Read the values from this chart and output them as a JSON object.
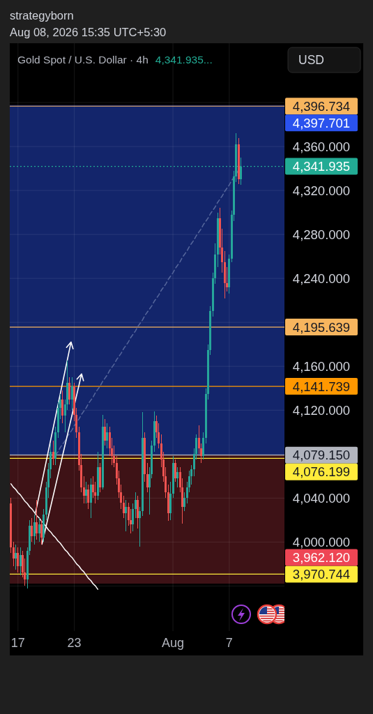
{
  "chart_data": {
    "type": "candlestick",
    "title": "Gold Spot / U.S. Dollar · 4h",
    "subtitle": "Aug 08, 2026 15:35 UTC+5:30",
    "annotations": [
      "strategyborn",
      "4,341.935...",
      "USD"
    ],
    "categories": [
      null,
      null,
      null,
      "17",
      null,
      null,
      null,
      null,
      null,
      null,
      null,
      null,
      null,
      null,
      null,
      null,
      null,
      null,
      null,
      null,
      null,
      null,
      null,
      null,
      null,
      null,
      null,
      "23",
      null,
      null,
      null,
      null,
      null,
      null,
      null,
      null,
      null,
      null,
      null,
      null,
      null,
      null,
      null,
      null,
      null,
      null,
      null,
      null,
      null,
      null,
      null,
      null,
      null,
      null,
      null,
      null,
      null,
      null,
      null,
      null,
      null,
      null,
      null,
      null,
      null,
      null,
      null,
      null,
      null,
      "Aug",
      null,
      null,
      null,
      null,
      null,
      null,
      null,
      null,
      null,
      null,
      null,
      null,
      null,
      null,
      null,
      null,
      null,
      null,
      null,
      null,
      null,
      null,
      null,
      "7",
      null,
      null,
      null,
      null,
      null
    ],
    "ylim": [
      3919,
      4454
    ],
    "yticks": [
      {
        "value": 3960,
        "label": null
      },
      {
        "value": 4000,
        "label": "4,000.000"
      },
      {
        "value": 4040,
        "label": "4,040.000"
      },
      {
        "value": 4080,
        "label": null
      },
      {
        "value": 4120,
        "label": "4,120.000"
      },
      {
        "value": 4160,
        "label": "4,160.000"
      },
      {
        "value": 4200,
        "label": null
      },
      {
        "value": 4240,
        "label": "4,240.000"
      },
      {
        "value": 4280,
        "label": "4,280.000"
      },
      {
        "value": 4320,
        "label": "4,320.000"
      },
      {
        "value": 4360,
        "label": "4,360.000"
      },
      {
        "value": 4400,
        "label": null
      }
    ],
    "grid": true,
    "series": [
      {
        "ohlc": [
          [
            4035,
            4040,
            3990,
            3995
          ],
          [
            3995,
            4000,
            3978,
            3985
          ],
          [
            3985,
            3998,
            3975,
            3990
          ],
          [
            3990,
            3995,
            3972,
            3978
          ],
          [
            3978,
            3995,
            3970,
            3988
          ],
          [
            3988,
            3992,
            3968,
            3972
          ],
          [
            3972,
            3985,
            3960,
            3966
          ],
          [
            3966,
            3995,
            3958,
            3992
          ],
          [
            3992,
            4020,
            3988,
            4015
          ],
          [
            4015,
            4022,
            4000,
            4005
          ],
          [
            4005,
            4025,
            3998,
            4018
          ],
          [
            4018,
            4038,
            4002,
            4008
          ],
          [
            4008,
            4022,
            4000,
            4016
          ],
          [
            4016,
            4020,
            3998,
            4004
          ],
          [
            4004,
            4030,
            4000,
            4025
          ],
          [
            4025,
            4055,
            4020,
            4050
          ],
          [
            4050,
            4072,
            4040,
            4066
          ],
          [
            4066,
            4090,
            4058,
            4082
          ],
          [
            4082,
            4092,
            4070,
            4076
          ],
          [
            4076,
            4105,
            4070,
            4100
          ],
          [
            4100,
            4128,
            4095,
            4122
          ],
          [
            4122,
            4135,
            4112,
            4130
          ],
          [
            4130,
            4138,
            4108,
            4115
          ],
          [
            4115,
            4130,
            4100,
            4125
          ],
          [
            4125,
            4165,
            4120,
            4145
          ],
          [
            4145,
            4150,
            4125,
            4130
          ],
          [
            4130,
            4150,
            4120,
            4142
          ],
          [
            4142,
            4145,
            4110,
            4116
          ],
          [
            4116,
            4122,
            4095,
            4100
          ],
          [
            4100,
            4105,
            4065,
            4070
          ],
          [
            4070,
            4080,
            4045,
            4050
          ],
          [
            4050,
            4060,
            4035,
            4042
          ],
          [
            4042,
            4055,
            4035,
            4048
          ],
          [
            4048,
            4052,
            4030,
            4036
          ],
          [
            4036,
            4058,
            4022,
            4052
          ],
          [
            4052,
            4060,
            4040,
            4045
          ],
          [
            4045,
            4055,
            4035,
            4042
          ],
          [
            4042,
            4082,
            4038,
            4068
          ],
          [
            4068,
            4072,
            4045,
            4050
          ],
          [
            4050,
            4116,
            4048,
            4105
          ],
          [
            4105,
            4112,
            4088,
            4092
          ],
          [
            4092,
            4108,
            4085,
            4100
          ],
          [
            4100,
            4105,
            4078,
            4085
          ],
          [
            4085,
            4095,
            4070,
            4078
          ],
          [
            4078,
            4088,
            4068,
            4072
          ],
          [
            4072,
            4078,
            4052,
            4058
          ],
          [
            4058,
            4065,
            4040,
            4045
          ],
          [
            4045,
            4052,
            4030,
            4036
          ],
          [
            4036,
            4042,
            4022,
            4026
          ],
          [
            4026,
            4038,
            4010,
            4032
          ],
          [
            4032,
            4036,
            4015,
            4020
          ],
          [
            4020,
            4030,
            4008,
            4016
          ],
          [
            4016,
            4035,
            4010,
            4030
          ],
          [
            4030,
            4045,
            4022,
            4038
          ],
          [
            4038,
            4042,
            4012,
            4022
          ],
          [
            4022,
            4032,
            3996,
            4028
          ],
          [
            4028,
            4118,
            4024,
            4095
          ],
          [
            4095,
            4100,
            4055,
            4062
          ],
          [
            4062,
            4072,
            4045,
            4050
          ],
          [
            4050,
            4068,
            4025,
            4062
          ],
          [
            4062,
            4092,
            4058,
            4088
          ],
          [
            4088,
            4119,
            4082,
            4110
          ],
          [
            4110,
            4115,
            4095,
            4100
          ],
          [
            4100,
            4108,
            4085,
            4090
          ],
          [
            4090,
            4098,
            4068,
            4075
          ],
          [
            4075,
            4082,
            4055,
            4060
          ],
          [
            4060,
            4068,
            4040,
            4045
          ],
          [
            4045,
            4052,
            4019,
            4026
          ],
          [
            4026,
            4055,
            4020,
            4044
          ],
          [
            4044,
            4078,
            4040,
            4072
          ],
          [
            4072,
            4075,
            4055,
            4058
          ],
          [
            4058,
            4068,
            4050,
            4064
          ],
          [
            4064,
            4068,
            4045,
            4050
          ],
          [
            4050,
            4058,
            4017,
            4032
          ],
          [
            4032,
            4045,
            4028,
            4040
          ],
          [
            4040,
            4055,
            4035,
            4050
          ],
          [
            4050,
            4065,
            4045,
            4060
          ],
          [
            4060,
            4070,
            4052,
            4066
          ],
          [
            4066,
            4085,
            4060,
            4080
          ],
          [
            4080,
            4098,
            4075,
            4095
          ],
          [
            4095,
            4106,
            4080,
            4085
          ],
          [
            4085,
            4090,
            4072,
            4078
          ],
          [
            4078,
            4100,
            4075,
            4095
          ],
          [
            4095,
            4140,
            4090,
            4135
          ],
          [
            4135,
            4180,
            4130,
            4175
          ],
          [
            4175,
            4215,
            4170,
            4210
          ],
          [
            4210,
            4245,
            4205,
            4240
          ],
          [
            4240,
            4272,
            4235,
            4262
          ],
          [
            4262,
            4300,
            4250,
            4295
          ],
          [
            4295,
            4304,
            4262,
            4268
          ],
          [
            4268,
            4285,
            4245,
            4255
          ],
          [
            4255,
            4265,
            4222,
            4236
          ],
          [
            4236,
            4250,
            4228,
            4232
          ],
          [
            4232,
            4262,
            4226,
            4258
          ],
          [
            4258,
            4302,
            4255,
            4298
          ],
          [
            4298,
            4338,
            4292,
            4333
          ],
          [
            4333,
            4372,
            4328,
            4362
          ],
          [
            4362,
            4368,
            4326,
            4330
          ],
          [
            4330,
            4350,
            4325,
            4341.935
          ]
        ],
        "colors": [
          "#ef5350",
          "#ef5350",
          "#26a69a",
          "#ef5350",
          "#26a69a",
          "#ef5350",
          "#ef5350",
          "#26a69a",
          "#26a69a",
          "#ef5350",
          "#26a69a",
          "#ef5350",
          "#26a69a",
          "#ef5350",
          "#26a69a",
          "#26a69a",
          "#26a69a",
          "#26a69a",
          "#ef5350",
          "#26a69a",
          "#26a69a",
          "#26a69a",
          "#ef5350",
          "#26a69a",
          "#26a69a",
          "#ef5350",
          "#26a69a",
          "#ef5350",
          "#ef5350",
          "#ef5350",
          "#ef5350",
          "#ef5350",
          "#26a69a",
          "#ef5350",
          "#26a69a",
          "#ef5350",
          "#ef5350",
          "#26a69a",
          "#ef5350",
          "#26a69a",
          "#ef5350",
          "#26a69a",
          "#ef5350",
          "#ef5350",
          "#ef5350",
          "#ef5350",
          "#ef5350",
          "#ef5350",
          "#ef5350",
          "#26a69a",
          "#ef5350",
          "#ef5350",
          "#26a69a",
          "#26a69a",
          "#ef5350",
          "#26a69a",
          "#26a69a",
          "#ef5350",
          "#ef5350",
          "#26a69a",
          "#26a69a",
          "#26a69a",
          "#ef5350",
          "#ef5350",
          "#ef5350",
          "#ef5350",
          "#ef5350",
          "#ef5350",
          "#26a69a",
          "#26a69a",
          "#ef5350",
          "#26a69a",
          "#ef5350",
          "#ef5350",
          "#26a69a",
          "#26a69a",
          "#26a69a",
          "#26a69a",
          "#26a69a",
          "#26a69a",
          "#ef5350",
          "#ef5350",
          "#26a69a",
          "#26a69a",
          "#26a69a",
          "#26a69a",
          "#26a69a",
          "#26a69a",
          "#26a69a",
          "#ef5350",
          "#ef5350",
          "#ef5350",
          "#ef5350",
          "#26a69a",
          "#26a69a",
          "#26a69a",
          "#26a69a",
          "#ef5350",
          "#26a69a"
        ]
      },
      {
        "type": "line",
        "color": "#ffffff",
        "values": [
          4053,
          4050,
          4048,
          4045,
          4043,
          4040,
          4037,
          4035,
          4032,
          4030,
          4027,
          4024,
          4022,
          4019,
          4017,
          4014,
          4011,
          4009,
          4006,
          4004,
          4001,
          3999,
          3996,
          3993,
          3991,
          3988,
          3986,
          3983,
          3980,
          3978,
          3975,
          3973,
          3970,
          3967,
          3965,
          3962,
          3960,
          3957,
          null,
          null,
          null,
          null,
          null,
          null,
          null,
          null,
          null,
          null,
          null,
          null,
          null,
          null,
          null,
          null,
          null,
          null,
          null,
          null,
          null,
          null,
          null,
          null,
          null,
          null,
          null,
          null,
          null,
          null,
          null,
          null,
          null,
          null,
          null,
          null,
          null,
          null,
          null,
          null,
          null,
          null,
          null,
          null,
          null,
          null,
          null,
          null,
          null,
          null,
          null,
          null,
          null,
          null,
          null,
          null,
          null,
          null,
          null,
          null,
          null
        ]
      },
      {
        "type": "line",
        "color": "#56679c",
        "line_style": "dashed",
        "values": [
          null,
          null,
          null,
          null,
          null,
          null,
          null,
          null,
          null,
          null,
          null,
          null,
          null,
          null,
          null,
          null,
          null,
          null,
          null,
          4079,
          4082,
          4086,
          4089,
          4092,
          4096,
          4099,
          4102,
          4106,
          4109,
          4112,
          4116,
          4119,
          4122,
          4126,
          4129,
          4132,
          4136,
          4139,
          4142,
          4146,
          4149,
          4152,
          4156,
          4159,
          4162,
          4166,
          4169,
          4172,
          4176,
          4179,
          4182,
          4186,
          4189,
          4192,
          4196,
          4199,
          4202,
          4206,
          4209,
          4212,
          4215,
          4219,
          4222,
          4225,
          4229,
          4232,
          4235,
          4239,
          4242,
          4245,
          4249,
          4252,
          4255,
          4259,
          4262,
          4265,
          4269,
          4272,
          4275,
          4279,
          4282,
          4285,
          4289,
          4292,
          4295,
          4299,
          4302,
          4305,
          4309,
          4312,
          4315,
          4319,
          4322,
          4325,
          4329,
          4332,
          4335,
          4339,
          4342
        ]
      }
    ],
    "ref_lines": [
      {
        "axis": "y",
        "value": 4396.734,
        "label": "4,396.734",
        "color": "#f7b55e"
      },
      {
        "axis": "y",
        "value": 4341.935,
        "label": "4,341.935",
        "color": "#22ab94",
        "line_style": "dotted"
      },
      {
        "axis": "y",
        "value": 4195.639,
        "label": "4,195.639",
        "color": "#f7b55e"
      },
      {
        "axis": "y",
        "value": 4141.739,
        "label": "4,141.739",
        "color": "#ff9800"
      },
      {
        "axis": "y",
        "value": 4079.15,
        "label": "4,079.150",
        "color": "#b2b5be"
      },
      {
        "axis": "y",
        "value": 4076.199,
        "label": "4,076.199",
        "color": "#ffeb3b"
      },
      {
        "axis": "y",
        "value": 3970.744,
        "label": "3,970.744",
        "color": "#ffeb3b"
      }
    ],
    "bands": [
      {
        "axis": "y",
        "from": 4079.15,
        "to": 4397.701,
        "label": "4,397.701",
        "color": "#13256b"
      },
      {
        "axis": "y",
        "from": 3962.12,
        "to": 4079.15,
        "label": "3,962.120",
        "color": "#3e1216"
      }
    ]
  }
}
